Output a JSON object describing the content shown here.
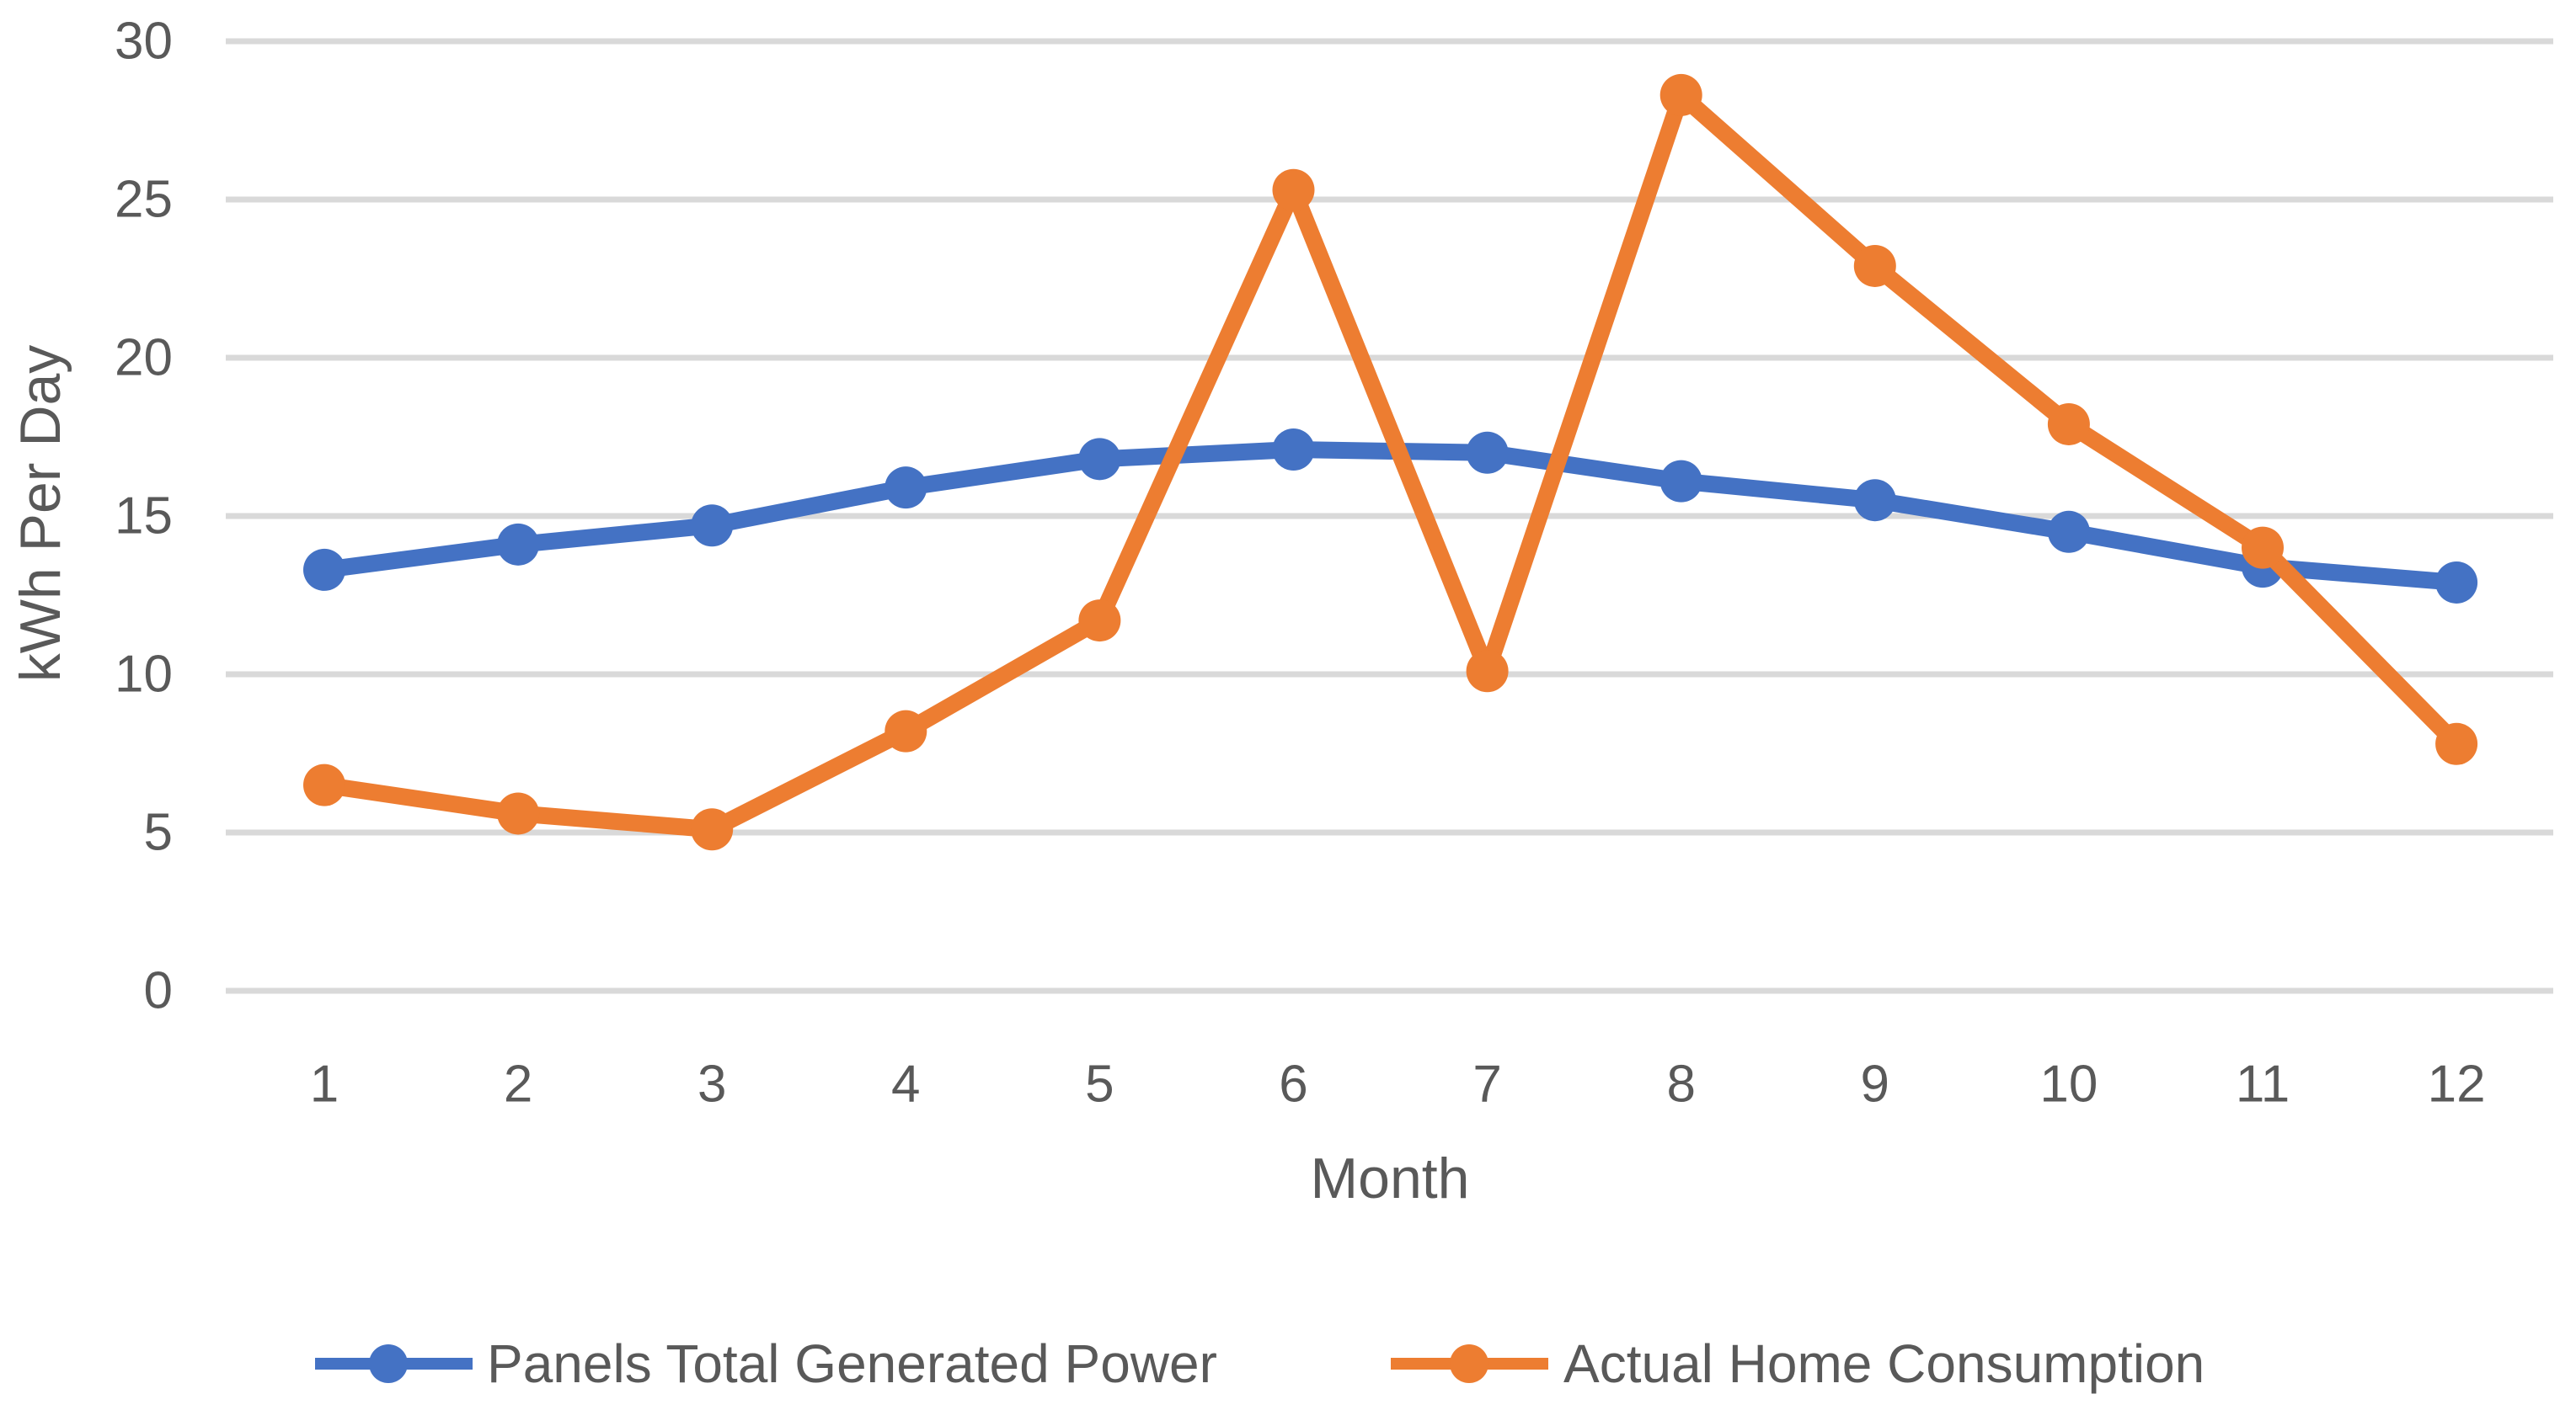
{
  "chart_data": {
    "type": "line",
    "title": "",
    "xlabel": "Month",
    "ylabel": "kWh Per Day",
    "x_categories": [
      "1",
      "2",
      "3",
      "4",
      "5",
      "6",
      "7",
      "8",
      "9",
      "10",
      "11",
      "12"
    ],
    "ylim": [
      0,
      30
    ],
    "yticks": [
      0,
      5,
      10,
      15,
      20,
      25,
      30
    ],
    "grid": true,
    "legend_position": "bottom",
    "series": [
      {
        "name": "Panels Total Generated Power",
        "color": "#4472C4",
        "marker": "circle",
        "values": [
          13.3,
          14.1,
          14.7,
          15.9,
          16.8,
          17.1,
          17.0,
          16.1,
          15.5,
          14.5,
          13.4,
          12.9
        ]
      },
      {
        "name": "Actual Home Consumption",
        "color": "#ED7D31",
        "marker": "circle",
        "values": [
          6.5,
          5.6,
          5.1,
          8.2,
          11.7,
          25.3,
          10.1,
          28.3,
          22.9,
          17.9,
          14.0,
          7.8
        ]
      }
    ]
  },
  "colors": {
    "gridline": "#D9D9D9",
    "axis_text": "#595959",
    "background": "#FFFFFF"
  }
}
